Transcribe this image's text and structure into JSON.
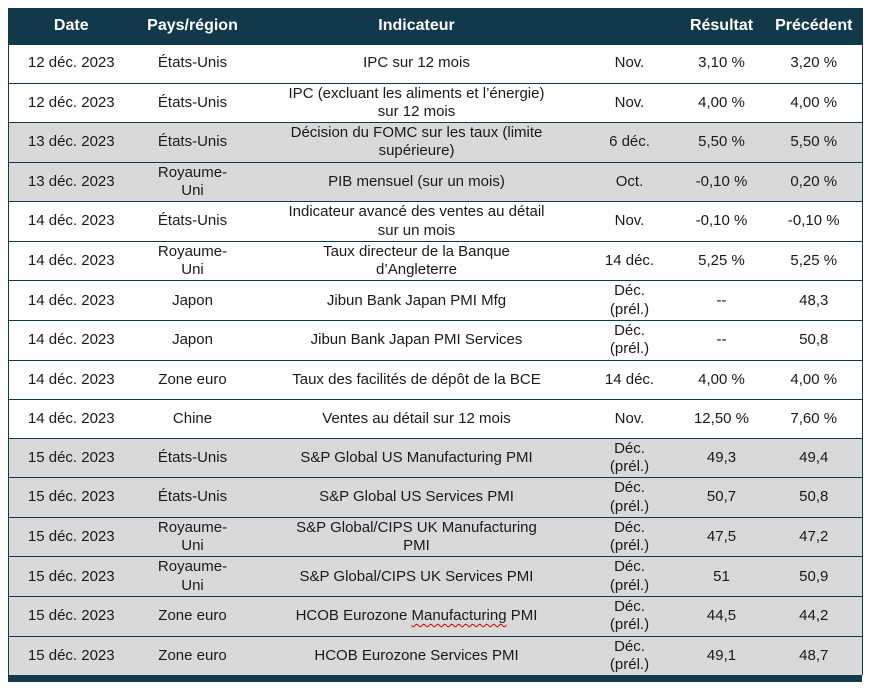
{
  "table": {
    "columns": [
      {
        "label": "Date"
      },
      {
        "label": "Pays/région"
      },
      {
        "label": "Indicateur"
      },
      {
        "label": ""
      },
      {
        "label": "Résultat"
      },
      {
        "label": "Précédent"
      }
    ],
    "colors": {
      "header_bg": "#12394a",
      "header_text": "#ffffff",
      "shaded_row_bg": "#d9d9d9",
      "border": "#12394a",
      "squiggle": "#cc0000"
    },
    "rows": [
      {
        "date": "12 déc. 2023",
        "region": "États-Unis",
        "indicator": "IPC sur 12 mois",
        "period": "Nov.",
        "result": "3,10 %",
        "previous": "3,20 %",
        "shaded": false
      },
      {
        "date": "12 déc. 2023",
        "region": "États-Unis",
        "indicator": "IPC (excluant les aliments et l’énergie) sur 12 mois",
        "period": "Nov.",
        "result": "4,00 %",
        "previous": "4,00 %",
        "shaded": false
      },
      {
        "date": "13 déc. 2023",
        "region": "États-Unis",
        "indicator": "Décision du FOMC sur les taux (limite supérieure)",
        "period": "6 déc.",
        "result": "5,50 %",
        "previous": "5,50 %",
        "shaded": true
      },
      {
        "date": "13 déc. 2023",
        "region": "Royaume-\nUni",
        "indicator": "PIB mensuel (sur un mois)",
        "period": "Oct.",
        "result": "-0,10 %",
        "previous": "0,20 %",
        "shaded": true
      },
      {
        "date": "14 déc. 2023",
        "region": "États-Unis",
        "indicator": "Indicateur avancé des ventes au détail sur un mois",
        "period": "Nov.",
        "result": "-0,10 %",
        "previous": "-0,10 %",
        "shaded": false
      },
      {
        "date": "14 déc. 2023",
        "region": "Royaume-\nUni",
        "indicator": "Taux directeur de la Banque d’Angleterre",
        "period": "14 déc.",
        "result": "5,25 %",
        "previous": "5,25 %",
        "shaded": false
      },
      {
        "date": "14 déc. 2023",
        "region": "Japon",
        "indicator": "Jibun Bank Japan PMI Mfg",
        "period": "Déc.\n(prél.)",
        "result": "--",
        "previous": "48,3",
        "shaded": false
      },
      {
        "date": "14 déc. 2023",
        "region": "Japon",
        "indicator": "Jibun Bank Japan PMI Services",
        "period": "Déc.\n(prél.)",
        "result": "--",
        "previous": "50,8",
        "shaded": false
      },
      {
        "date": "14 déc. 2023",
        "region": "Zone euro",
        "indicator": "Taux des facilités de dépôt de la BCE",
        "period": "14 déc.",
        "result": "4,00 %",
        "previous": "4,00 %",
        "shaded": false
      },
      {
        "date": "14 déc. 2023",
        "region": "Chine",
        "indicator": "Ventes au détail sur 12 mois",
        "period": "Nov.",
        "result": "12,50 %",
        "previous": "7,60 %",
        "shaded": false
      },
      {
        "date": "15 déc. 2023",
        "region": "États-Unis",
        "indicator": "S&P Global US Manufacturing PMI",
        "period": "Déc.\n(prél.)",
        "result": "49,3",
        "previous": "49,4",
        "shaded": true
      },
      {
        "date": "15 déc. 2023",
        "region": "États-Unis",
        "indicator": "S&P Global US Services PMI",
        "period": "Déc.\n(prél.)",
        "result": "50,7",
        "previous": "50,8",
        "shaded": true
      },
      {
        "date": "15 déc. 2023",
        "region": "Royaume-\nUni",
        "indicator": "S&P Global/CIPS UK Manufacturing PMI",
        "period": "Déc.\n(prél.)",
        "result": "47,5",
        "previous": "47,2",
        "shaded": true
      },
      {
        "date": "15 déc. 2023",
        "region": "Royaume-\nUni",
        "indicator": "S&P Global/CIPS UK Services PMI",
        "period": "Déc.\n(prél.)",
        "result": "51",
        "previous": "50,9",
        "shaded": true
      },
      {
        "date": "15 déc. 2023",
        "region": "Zone euro",
        "indicator": "HCOB Eurozone Manufacturing PMI",
        "period": "Déc.\n(prél.)",
        "result": "44,5",
        "previous": "44,2",
        "shaded": true,
        "squiggle_word": "Manufacturing"
      },
      {
        "date": "15 déc. 2023",
        "region": "Zone euro",
        "indicator": "HCOB Eurozone Services PMI",
        "period": "Déc.\n(prél.)",
        "result": "49,1",
        "previous": "48,7",
        "shaded": true
      }
    ]
  }
}
